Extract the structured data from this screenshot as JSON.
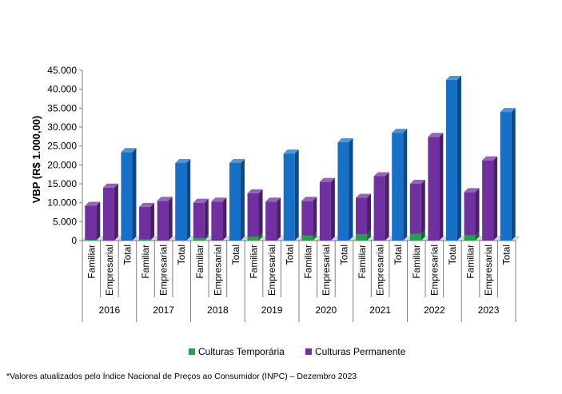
{
  "chart_data": {
    "type": "bar",
    "stacked": true,
    "ylabel": "VBP (R$ 1.000,00)",
    "ylim": [
      0,
      45000
    ],
    "yticks": [
      "0",
      "5.000",
      "10.000",
      "15.000",
      "20.000",
      "25.000",
      "30.000",
      "35.000",
      "40.000",
      "45.000"
    ],
    "tick_values": [
      0,
      5000,
      10000,
      15000,
      20000,
      25000,
      30000,
      35000,
      40000,
      45000
    ],
    "years": [
      "2016",
      "2017",
      "2018",
      "2019",
      "2020",
      "2021",
      "2022",
      "2023"
    ],
    "subcategories": [
      "Familiar",
      "Empresarial",
      "Total"
    ],
    "series": [
      {
        "name": "Culturas Temporária",
        "color": "#21a34a",
        "values": [
          [
            200,
            0,
            0
          ],
          [
            300,
            0,
            0
          ],
          [
            600,
            0,
            0
          ],
          [
            1000,
            0,
            0
          ],
          [
            1300,
            0,
            0
          ],
          [
            1700,
            0,
            0
          ],
          [
            1800,
            0,
            0
          ],
          [
            1400,
            0,
            0
          ]
        ]
      },
      {
        "name": "Culturas Permanente",
        "color": "#7030a0",
        "values": [
          [
            9000,
            14000,
            0
          ],
          [
            8600,
            10500,
            0
          ],
          [
            9400,
            10300,
            0
          ],
          [
            11500,
            10300,
            0
          ],
          [
            9200,
            15500,
            0
          ],
          [
            9600,
            17000,
            0
          ],
          [
            13200,
            27400,
            0
          ],
          [
            11400,
            21200,
            0
          ]
        ]
      },
      {
        "name": "Total",
        "color": "#1670c8",
        "values": [
          [
            0,
            0,
            23400
          ],
          [
            0,
            0,
            20500
          ],
          [
            0,
            0,
            20500
          ],
          [
            0,
            0,
            23000
          ],
          [
            0,
            0,
            26000
          ],
          [
            0,
            0,
            28500
          ],
          [
            0,
            0,
            42500
          ],
          [
            0,
            0,
            34000
          ]
        ]
      }
    ],
    "legend": [
      "Culturas Temporária",
      "Culturas Permanente"
    ],
    "legend_position": "bottom",
    "grid": false
  },
  "footnote": "*Valores atualizados pelo Índice Nacional de Preços ao Consumidor (INPC) – Dezembro 2023"
}
